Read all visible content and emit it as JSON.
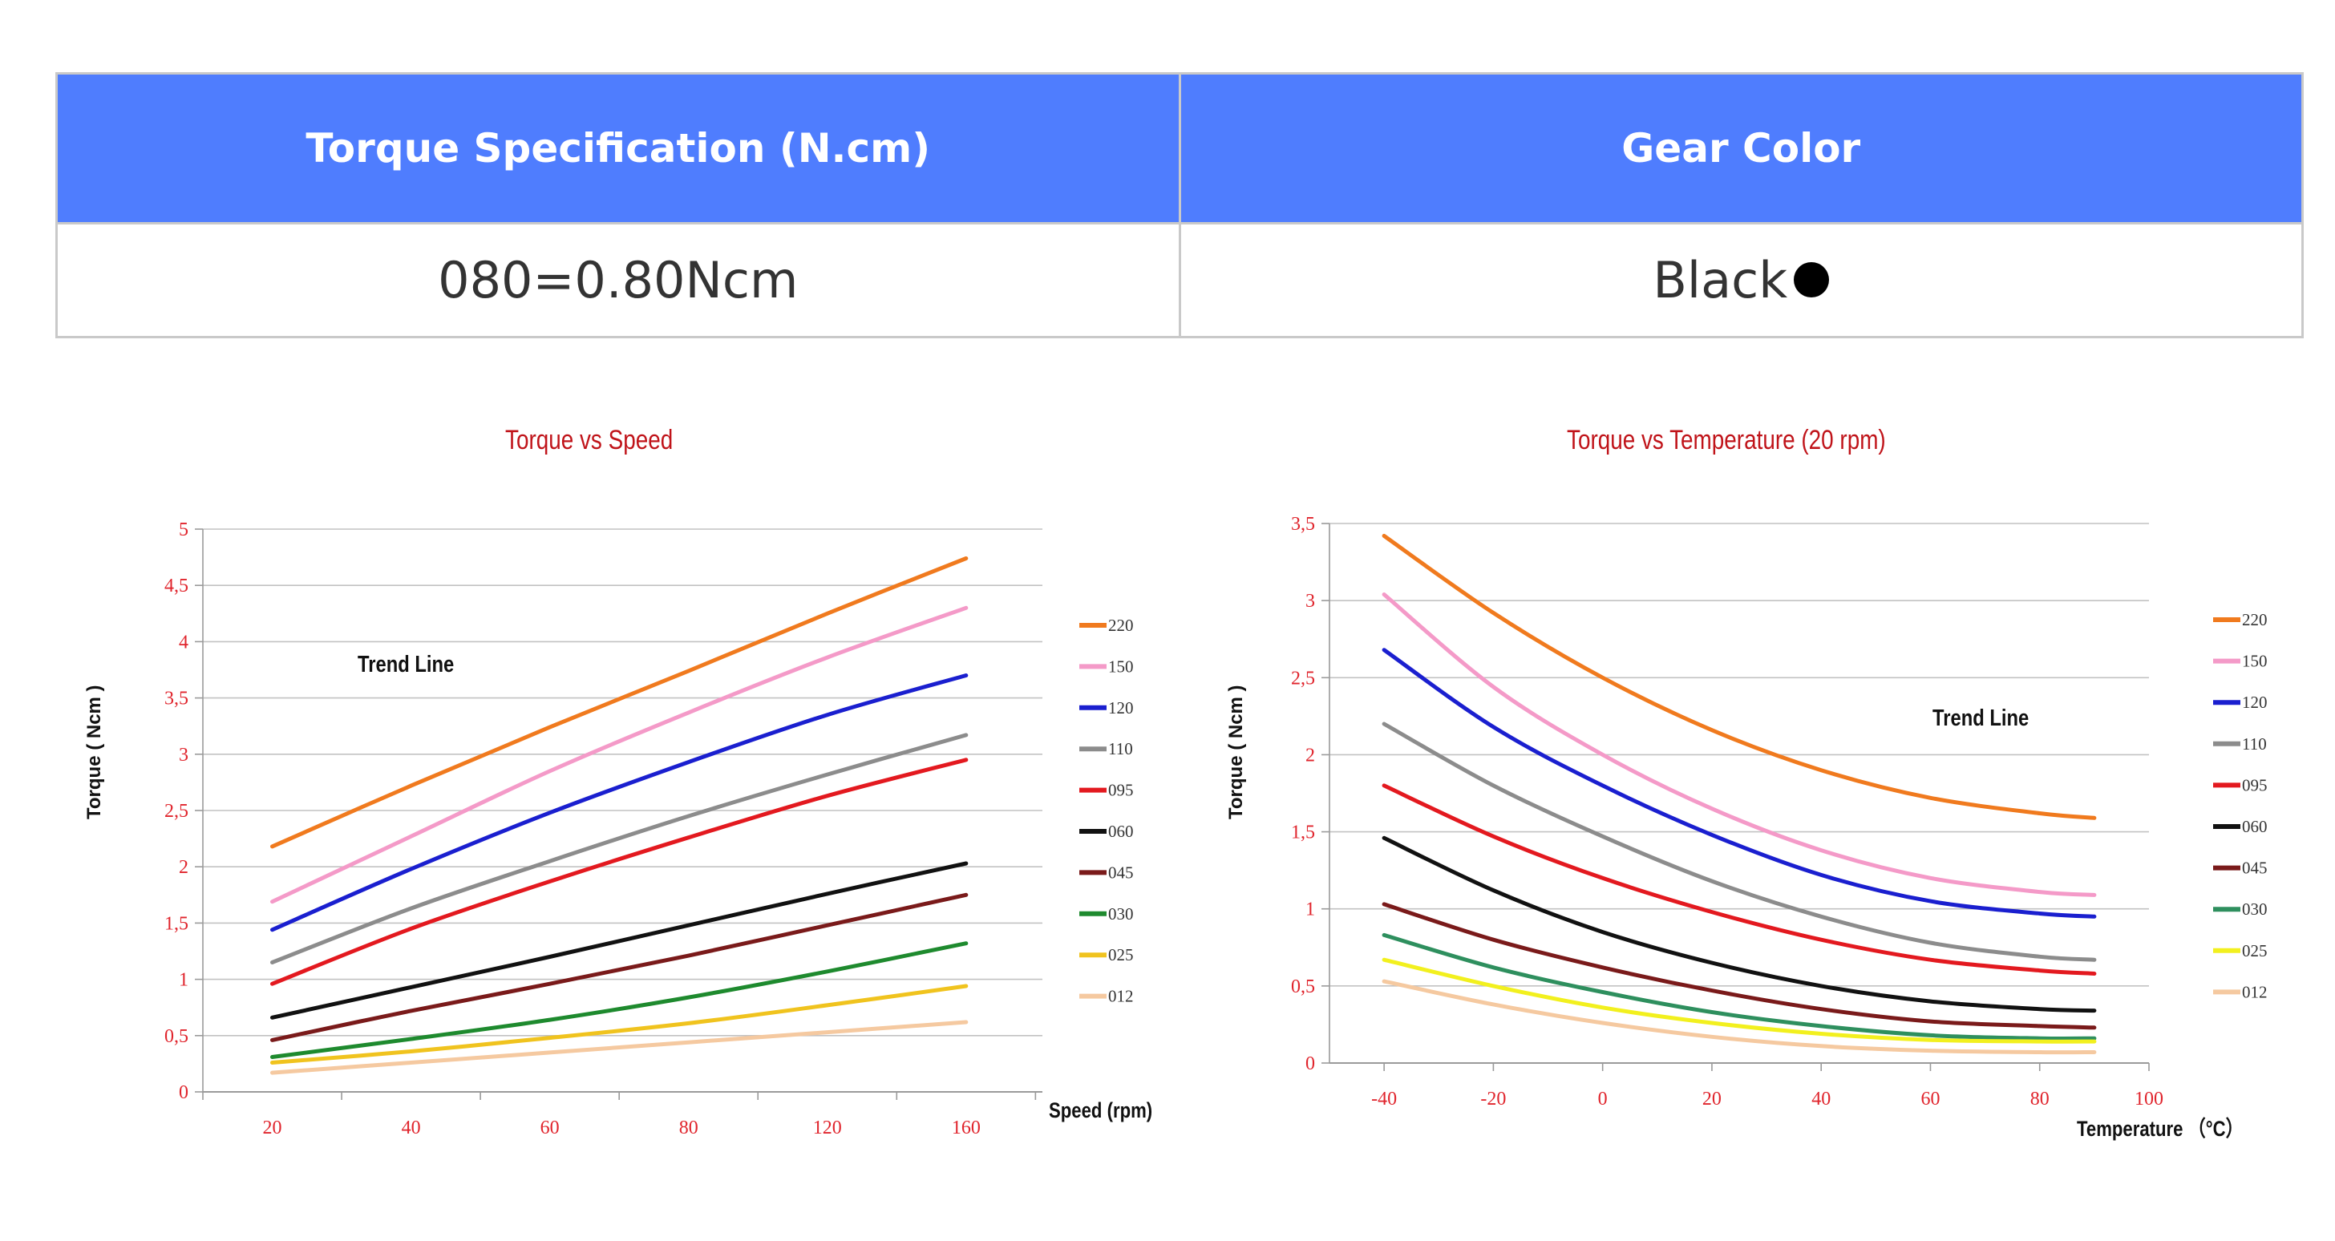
{
  "spec_table": {
    "headers": [
      "Torque Specification (N.cm)",
      "Gear Color"
    ],
    "row": [
      "080=0.80Ncm",
      "Black"
    ]
  },
  "chart_data": [
    {
      "type": "line",
      "title": "Torque vs Speed",
      "xlabel": "Speed (rpm)",
      "ylabel": "Torque ( Ncm )",
      "annotation": "Trend Line",
      "categories": [
        "20",
        "40",
        "60",
        "80",
        "120",
        "160"
      ],
      "ylim": [
        0,
        5
      ],
      "yticks": [
        "0",
        "0,5",
        "1",
        "1,5",
        "2",
        "2,5",
        "3",
        "3,5",
        "4",
        "4,5",
        "5"
      ],
      "grid": true,
      "legend_position": "right",
      "series": [
        {
          "name": "220",
          "color": "#f07a1e",
          "values": [
            2.18,
            2.72,
            3.24,
            3.74,
            4.25,
            4.74
          ]
        },
        {
          "name": "150",
          "color": "#f49ac8",
          "values": [
            1.69,
            2.27,
            2.85,
            3.37,
            3.86,
            4.3
          ]
        },
        {
          "name": "120",
          "color": "#1a1fcf",
          "values": [
            1.44,
            1.98,
            2.48,
            2.93,
            3.35,
            3.7
          ]
        },
        {
          "name": "110",
          "color": "#8c8c8c",
          "values": [
            1.15,
            1.63,
            2.05,
            2.45,
            2.82,
            3.17
          ]
        },
        {
          "name": "095",
          "color": "#e3191f",
          "values": [
            0.96,
            1.45,
            1.87,
            2.26,
            2.63,
            2.95
          ]
        },
        {
          "name": "060",
          "color": "#111111",
          "values": [
            0.66,
            0.93,
            1.2,
            1.48,
            1.76,
            2.03
          ]
        },
        {
          "name": "045",
          "color": "#7a1a1a",
          "values": [
            0.46,
            0.72,
            0.96,
            1.21,
            1.48,
            1.75
          ]
        },
        {
          "name": "030",
          "color": "#1e8a2e",
          "values": [
            0.31,
            0.47,
            0.64,
            0.84,
            1.07,
            1.32
          ]
        },
        {
          "name": "025",
          "color": "#f0c31e",
          "values": [
            0.26,
            0.36,
            0.48,
            0.61,
            0.77,
            0.94
          ]
        },
        {
          "name": "012",
          "color": "#f5c9a0",
          "values": [
            0.17,
            0.26,
            0.35,
            0.44,
            0.53,
            0.62
          ]
        }
      ]
    },
    {
      "type": "line",
      "title": "Torque vs Temperature (20 rpm)",
      "xlabel": "Temperature （°C）",
      "ylabel": "Torque ( Ncm )",
      "annotation": "Trend Line",
      "x": [
        -40,
        -20,
        0,
        20,
        40,
        60,
        80,
        90
      ],
      "xticks": [
        "-40",
        "-20",
        "0",
        "20",
        "40",
        "60",
        "80",
        "100"
      ],
      "xlim": [
        -50,
        100
      ],
      "ylim": [
        0,
        3.5
      ],
      "yticks": [
        "0",
        "0,5",
        "1",
        "1,5",
        "2",
        "2,5",
        "3",
        "3,5"
      ],
      "grid": true,
      "legend_position": "right",
      "series": [
        {
          "name": "220",
          "color": "#f07a1e",
          "values": [
            3.42,
            2.92,
            2.5,
            2.16,
            1.9,
            1.72,
            1.62,
            1.59
          ]
        },
        {
          "name": "150",
          "color": "#f49ac8",
          "values": [
            3.04,
            2.44,
            2.0,
            1.65,
            1.38,
            1.2,
            1.11,
            1.09
          ]
        },
        {
          "name": "120",
          "color": "#1a1fcf",
          "values": [
            2.68,
            2.18,
            1.8,
            1.48,
            1.22,
            1.05,
            0.97,
            0.95
          ]
        },
        {
          "name": "110",
          "color": "#8c8c8c",
          "values": [
            2.2,
            1.8,
            1.47,
            1.18,
            0.95,
            0.78,
            0.69,
            0.67
          ]
        },
        {
          "name": "095",
          "color": "#e3191f",
          "values": [
            1.8,
            1.47,
            1.2,
            0.98,
            0.8,
            0.67,
            0.6,
            0.58
          ]
        },
        {
          "name": "060",
          "color": "#111111",
          "values": [
            1.46,
            1.12,
            0.85,
            0.65,
            0.5,
            0.4,
            0.35,
            0.34
          ]
        },
        {
          "name": "045",
          "color": "#7a1a1a",
          "values": [
            1.03,
            0.8,
            0.62,
            0.47,
            0.35,
            0.27,
            0.24,
            0.23
          ]
        },
        {
          "name": "030",
          "color": "#2e8f5e",
          "values": [
            0.83,
            0.62,
            0.46,
            0.33,
            0.24,
            0.18,
            0.16,
            0.16
          ]
        },
        {
          "name": "025",
          "color": "#f2f01e",
          "values": [
            0.67,
            0.5,
            0.36,
            0.26,
            0.19,
            0.15,
            0.14,
            0.14
          ]
        },
        {
          "name": "012",
          "color": "#f5c9a0",
          "values": [
            0.53,
            0.38,
            0.26,
            0.17,
            0.11,
            0.08,
            0.07,
            0.07
          ]
        }
      ]
    }
  ]
}
